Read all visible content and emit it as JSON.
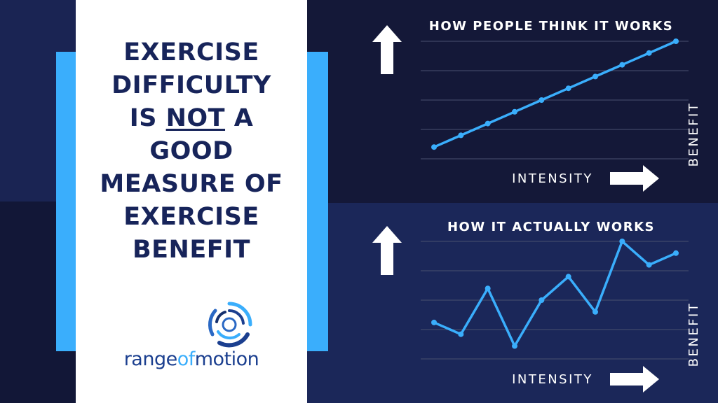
{
  "headline": {
    "line1": "EXERCISE",
    "line2": "DIFFICULTY",
    "line3_pre": "IS ",
    "line3_underlined": "NOT",
    "line3_post": " A",
    "line4": "GOOD",
    "line5": "MEASURE OF",
    "line6": "EXERCISE",
    "line7": "BENEFIT"
  },
  "logo": {
    "text_part1": "range",
    "text_part2": "of",
    "text_part3": "motion"
  },
  "colors": {
    "accent": "#3aaefc",
    "navy_text": "#17245a",
    "line": "#3aaefc",
    "grid": "#4a5170",
    "panel_top": "#141838",
    "panel_bottom": "#1b2759"
  },
  "icons": [
    "up-arrow-icon",
    "right-arrow-icon",
    "logo-swirl-icon"
  ],
  "chart_data": [
    {
      "type": "line",
      "title": "HOW PEOPLE THINK IT WORKS",
      "xlabel": "INTENSITY",
      "ylabel": "BENEFIT",
      "x": [
        1,
        2,
        3,
        4,
        5,
        6,
        7,
        8,
        9,
        10
      ],
      "values": [
        0.4,
        1.4,
        2.4,
        3.4,
        4.4,
        5.4,
        6.4,
        7.4,
        8.4,
        9.4
      ],
      "ylim": [
        -0.6,
        9.4
      ],
      "grid": true,
      "legend": "none"
    },
    {
      "type": "line",
      "title": "HOW IT ACTUALLY WORKS",
      "xlabel": "INTENSITY",
      "ylabel": "BENEFIT",
      "x": [
        1,
        2,
        3,
        4,
        5,
        6,
        7,
        8,
        9,
        10
      ],
      "values": [
        3.1,
        2.1,
        6.0,
        1.1,
        5.0,
        7.0,
        4.0,
        10.0,
        8.0,
        9.0
      ],
      "ylim": [
        0,
        10
      ],
      "grid": true,
      "legend": "none"
    }
  ]
}
